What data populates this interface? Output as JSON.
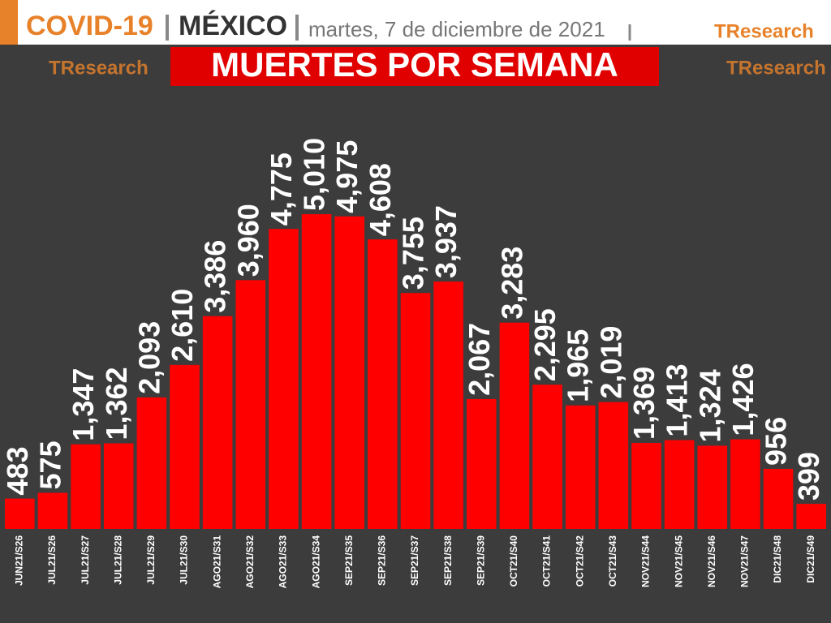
{
  "header": {
    "topic": "COVID-19",
    "country": "MÉXICO",
    "date": "martes, 7 de diciembre de 2021",
    "logo": "TResearch"
  },
  "chart_data": {
    "type": "bar",
    "title": "MUERTES POR SEMANA",
    "color": "#ff0000",
    "categories": [
      "JUN21/S26",
      "JUL21/S26",
      "JUL21/S27",
      "JUL21/S28",
      "JUL21/S29",
      "JUL21/S30",
      "AGO21/S31",
      "AGO21/S32",
      "AGO21/S33",
      "AGO21/S34",
      "SEP21/S35",
      "SEP21/S36",
      "SEP21/S37",
      "SEP21/S38",
      "SEP21/S39",
      "OCT21/S40",
      "OCT21/S41",
      "OCT21/S42",
      "OCT21/S43",
      "NOV21/S44",
      "NOV21/S45",
      "NOV21/S46",
      "NOV21/S47",
      "DIC21/S48",
      "DIC21/S49"
    ],
    "values": [
      483,
      575,
      1347,
      1362,
      2093,
      2610,
      3386,
      3960,
      4775,
      5010,
      4975,
      4608,
      3755,
      3937,
      2067,
      3283,
      2295,
      1965,
      2019,
      1369,
      1413,
      1324,
      1426,
      956,
      399
    ],
    "value_labels": [
      "483",
      "575",
      "1,347",
      "1,362",
      "2,093",
      "2,610",
      "3,386",
      "3,960",
      "4,775",
      "5,010",
      "4,975",
      "4,608",
      "3,755",
      "3,937",
      "2,067",
      "3,283",
      "2,295",
      "1,965",
      "2,019",
      "1,369",
      "1,413",
      "1,324",
      "1,426",
      "956",
      "399"
    ]
  }
}
